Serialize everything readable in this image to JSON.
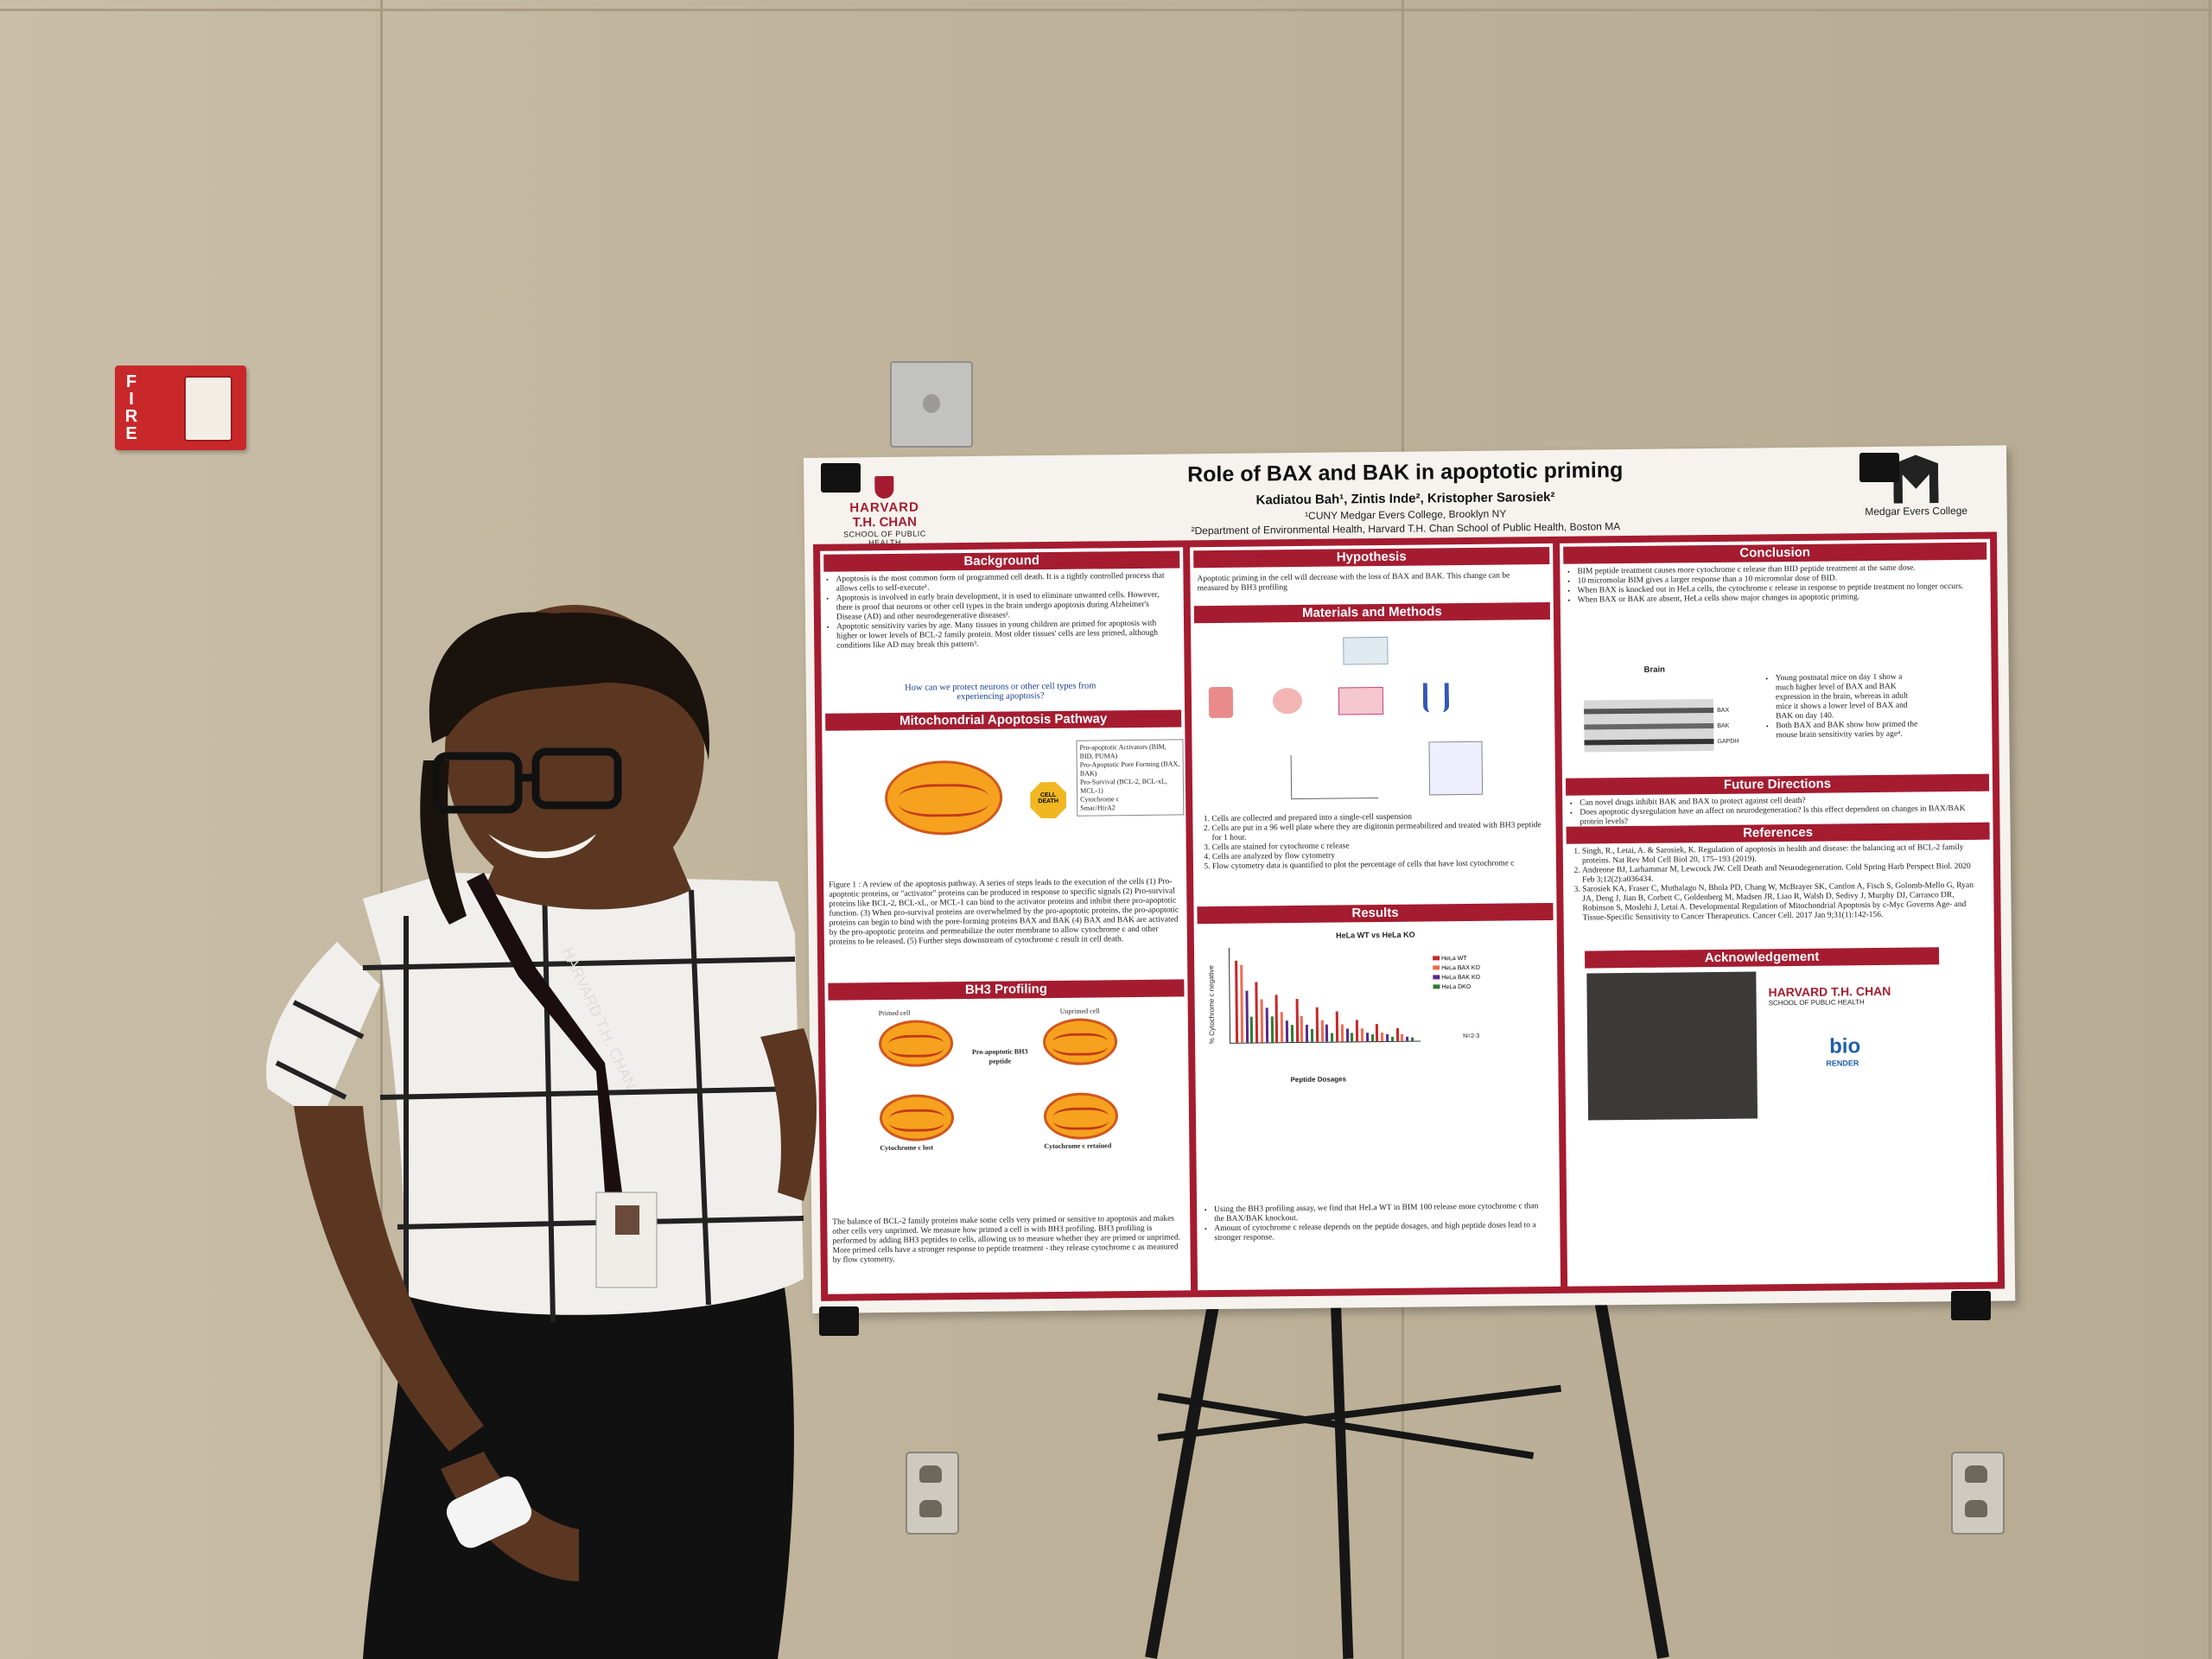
{
  "scene": {
    "fire_alarm": {
      "label": "FIRE"
    }
  },
  "poster": {
    "title": "Role of BAX and BAK in apoptotic priming",
    "authors": "Kadiatou Bah¹, Zintis Inde², Kristopher Sarosiek²",
    "affiliation_1": "¹CUNY Medgar Evers College, Brooklyn NY",
    "affiliation_2": "²Department of Environmental Health, Harvard T.H. Chan School of Public Health, Boston MA",
    "harvard_logo": {
      "l1": "HARVARD",
      "l2": "T.H. CHAN",
      "l3": "SCHOOL OF PUBLIC HEALTH"
    },
    "medgar_logo": {
      "label": "Medgar Evers College"
    },
    "sections": {
      "background": {
        "title": "Background",
        "bullets": [
          "Apoptosis is the most common form of programmed cell death. It is a tightly controlled process that allows cells to self-execute¹.",
          "Apoptosis is involved in early brain development, it is used to eliminate unwanted cells. However, there is proof that neurons or other cell types in the brain undergo apoptosis during Alzheimer's Disease (AD) and other neurodegenerative diseases².",
          "Apoptotic sensitivity varies by age. Many tissues in young children are primed for apoptosis with higher or lower levels of BCL-2 family protein. Most older tissues' cells are less primed, although conditions like AD may break this pattern³."
        ],
        "question": "How can we protect neurons or other cell types from experiencing apoptosis?"
      },
      "pathway": {
        "title": "Mitochondrial Apoptosis Pathway",
        "caption": "Figure 1 : A review of the apoptosis pathway. A series of steps leads to the execution of the cells (1) Pro-apoptotic proteins, or \"activator\" proteins can be produced in response to specific signals (2) Pro-survival proteins like BCL-2, BCL-xL, or MCL-1 can bind to the activator proteins and inhibit there pro-apoptotic function. (3) When pro-survival proteins are overwhelmed by the pro-apoptotic proteins, the pro-apoptotic proteins can begin to bind with the pore-forming proteins BAX and BAK (4) BAX and BAK are activated by the pro-apoptotic proteins and permeabilize the outer membrane to allow cytochrome c and other proteins to be released. (5) Further steps downstream of cytochrome c result in cell death.",
        "legend": [
          "Pro-apoptotic Activators (BIM, BID, PUMA)",
          "Pro-Apoptotic Pore Forming (BAX, BAK)",
          "Pro-Survival (BCL-2, BCL-xL, MCL-1)",
          "Cytochrome c",
          "Smac/HtrA2"
        ],
        "cell_death": "CELL DEATH"
      },
      "bh3": {
        "title": "BH3 Profiling",
        "labels": {
          "primed": "Primed cell",
          "unprimed": "Unprimed cell",
          "peptide": "Pro-apoptotic BH3 peptide",
          "lost": "Cytochrome c lost",
          "retained": "Cytochrome c retained"
        },
        "text": "The balance of BCL-2 family proteins make some cells very primed or sensitive to apoptosis and makes other cells very unprimed. We measure how primed a cell is with BH3 profiling. BH3 profiling is performed by adding BH3 peptides to cells, allowing us to measure whether they are primed or unprimed. More primed cells have a stronger response to peptide treatment - they release cytochrome c as measured by flow cytometry."
      },
      "hypothesis": {
        "title": "Hypothesis",
        "text": "Apoptotic priming in the cell will decrease with the loss of BAX and BAK. This change can be measured by BH3 profiling"
      },
      "methods": {
        "title": "Materials and Methods",
        "steps": [
          "Cells are collected and prepared into a single-cell suspension",
          "Cells are put in a 96 well plate where they are digitonin permeabilized and treated with BH3 peptide for 1 hour.",
          "Cells are stained for cytochrome c release",
          "Cells are analyzed by flow cytometry",
          "Flow cytometry data is quantified to plot the percentage of cells that have lost cytochrome c"
        ]
      },
      "results": {
        "title": "Results",
        "chart_title": "HeLa WT vs HeLa KO",
        "ylabel": "% Cytochrome c negative",
        "xlabel": "Peptide Dosages",
        "legend": [
          "HeLa WT",
          "HeLa BAX KO",
          "HeLa BAK KO",
          "HeLa DKO"
        ],
        "n_label": "N=2-3",
        "bullets": [
          "Using the BH3 profiling assay, we find that HeLa WT in BIM 100 release more cytochrome c than the BAX/BAK knockout.",
          "Amount of cytochrome c release depends on the peptide dosages, and high peptide doses lead to a stronger response."
        ]
      },
      "conclusion": {
        "title": "Conclusion",
        "bullets": [
          "BIM peptide treatment causes more cytochrome c release than BID peptide treatment at the same dose.",
          "10 micromolar BIM gives a larger response than a 10 micromolar dose of BID.",
          "When BAX is knocked out in HeLa cells, the cytochrome c release in response to peptide treatment no longer occurs.",
          "When BAX or BAK are absent, HeLa cells show major changes in apoptotic priming."
        ],
        "blot_title": "Brain",
        "blot_rows": [
          "BAX",
          "BAK",
          "GAPDH"
        ],
        "blot_notes": [
          "Young postnatal mice on day 1 show a much higher level of BAX and BAK expression in the brain, whereas in adult mice it shows a lower level of BAX and BAK on day 140.",
          "Both BAX and BAK show how primed the mouse brain sensitivity varies by age⁴."
        ]
      },
      "future": {
        "title": "Future Directions",
        "bullets": [
          "Can novel drugs inhibit BAK and BAX to protect against cell death?",
          "Does apoptotic dysregulation have an affect on neurodegeneration? Is this effect dependent on changes in BAX/BAK protein levels?"
        ]
      },
      "references": {
        "title": "References",
        "items": [
          "Singh, R., Letai, A. & Sarosiek, K. Regulation of apoptosis in health and disease: the balancing act of BCL-2 family proteins. Nat Rev Mol Cell Biol 20, 175–193 (2019).",
          "Andreone BJ, Larhammar M, Lewcock JW. Cell Death and Neurodegeneration. Cold Spring Harb Perspect Biol. 2020 Feb 3;12(2):a036434.",
          "Sarosiek KA, Fraser C, Muthalagu N, Bhola PD, Chang W, McBrayer SK, Cantlon A, Fisch S, Golomb-Mello G, Ryan JA, Deng J, Jian B, Corbett C, Goldenberg M, Madsen JR, Liao R, Walsh D, Sedivy J, Murphy DJ, Carrasco DR, Robinson S, Moslehi J, Letai A. Developmental Regulation of Mitochondrial Apoptosis by c-Myc Governs Age- and Tissue-Specific Sensitivity to Cancer Therapeutics. Cancer Cell. 2017 Jan 9;31(1):142-156."
        ]
      },
      "acknowledgement": {
        "title": "Acknowledgement",
        "harvard": "HARVARD T.H. CHAN",
        "harvard_sub": "SCHOOL OF PUBLIC HEALTH",
        "biorender_1": "bio",
        "biorender_2": "RENDER"
      }
    }
  },
  "person": {
    "lanyard_text": "HARVARD T.H. CHAN"
  }
}
